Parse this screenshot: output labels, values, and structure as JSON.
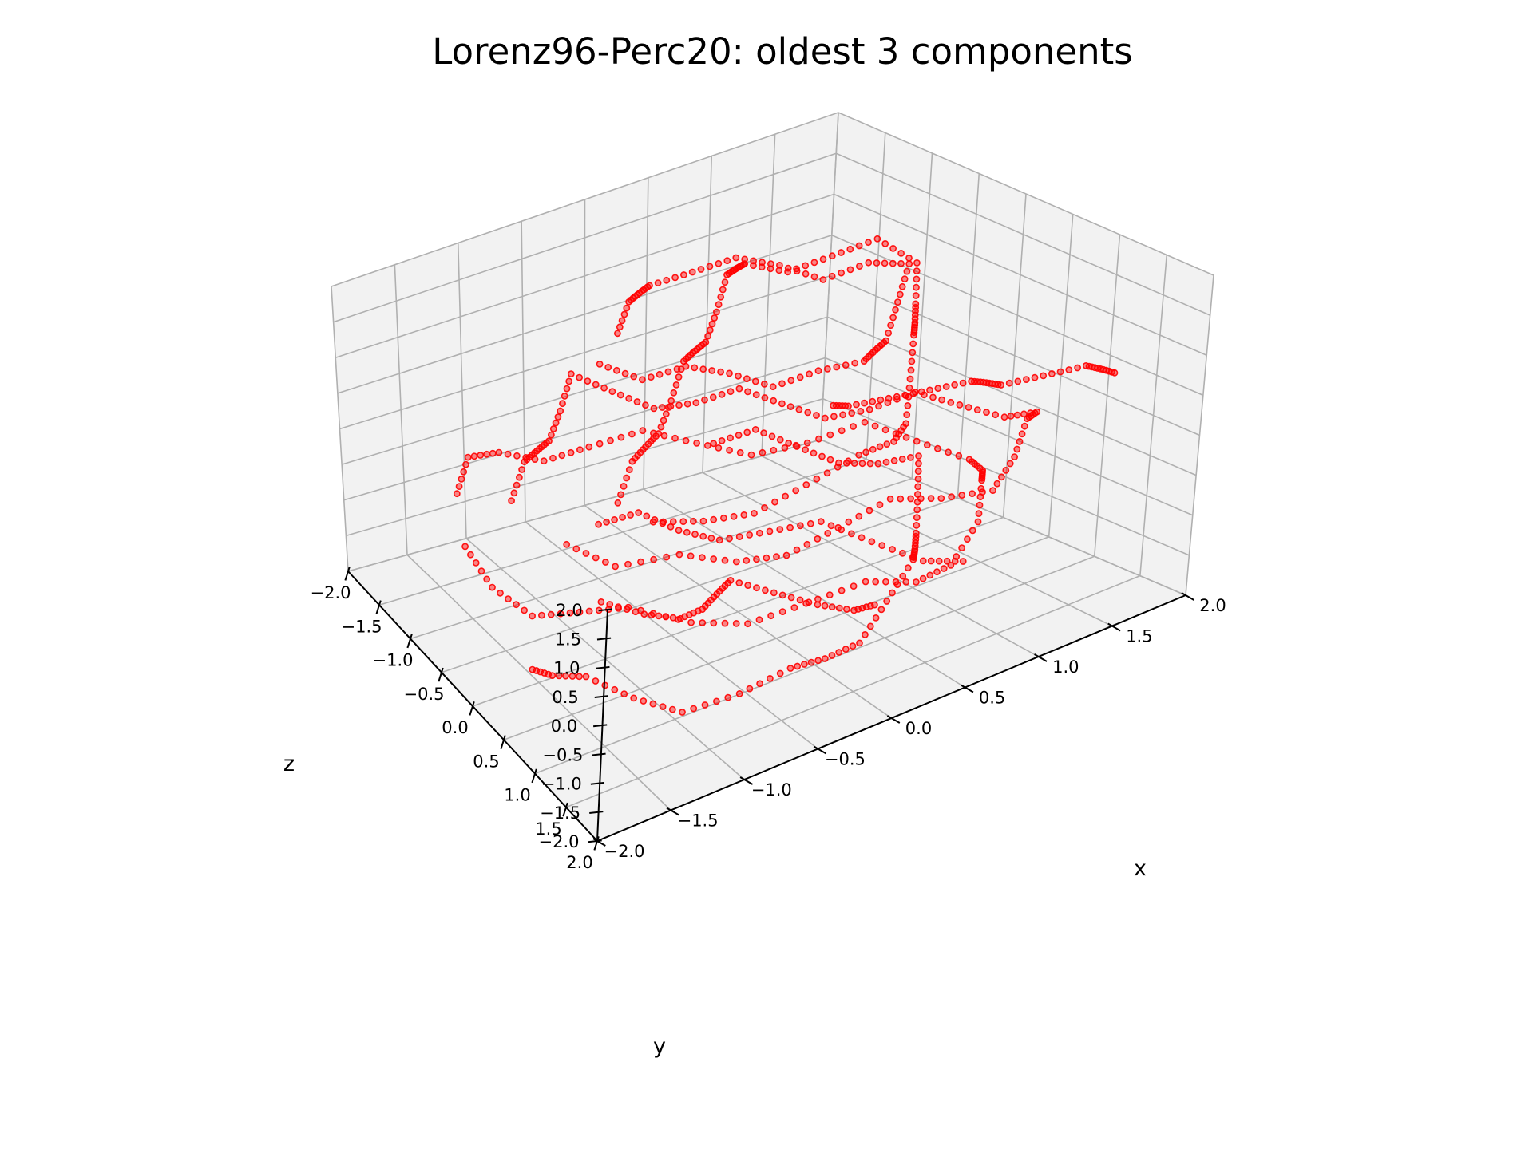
{
  "chart_data": {
    "type": "scatter",
    "projection": "3d",
    "title": "Lorenz96-Perc20: oldest 3 components",
    "xlabel": "x",
    "ylabel": "y",
    "zlabel": "z",
    "xlim": [
      -2.0,
      2.0
    ],
    "ylim": [
      -2.0,
      2.0
    ],
    "zlim": [
      -2.0,
      2.0
    ],
    "xticks": [
      "−2.0",
      "−1.5",
      "−1.0",
      "−0.5",
      "0.0",
      "0.5",
      "1.0",
      "1.5",
      "2.0"
    ],
    "yticks": [
      "−2.0",
      "−1.5",
      "−1.0",
      "−0.5",
      "0.0",
      "0.5",
      "1.0",
      "1.5",
      "2.0"
    ],
    "zticks": [
      "−2.0",
      "−1.5",
      "−1.0",
      "−0.5",
      "0.0",
      "0.5",
      "1.0",
      "1.5",
      "2.0"
    ],
    "grid": true,
    "marker_color": "#ff0000",
    "pane_color": "#f2f2f2",
    "series": [
      {
        "points": [
          [
            -1.4,
            -0.9,
            1.6
          ],
          [
            -1.2,
            -0.7,
            1.8
          ],
          [
            -1.0,
            -0.5,
            1.6
          ],
          [
            -0.8,
            -0.3,
            1.4
          ],
          [
            -0.6,
            -0.1,
            1.5
          ],
          [
            -0.4,
            0.1,
            1.7
          ],
          [
            -0.2,
            0.3,
            1.5
          ],
          [
            0.0,
            0.5,
            1.3
          ],
          [
            0.2,
            0.7,
            1.4
          ],
          [
            0.4,
            0.9,
            1.6
          ],
          [
            0.6,
            1.1,
            1.4
          ],
          [
            0.8,
            1.3,
            1.2
          ],
          [
            1.0,
            1.1,
            1.1
          ],
          [
            1.2,
            0.9,
            1.3
          ],
          [
            1.4,
            0.7,
            1.5
          ],
          [
            1.5,
            0.4,
            1.3
          ],
          [
            1.3,
            0.1,
            1.1
          ],
          [
            1.1,
            -0.2,
            1.2
          ],
          [
            0.9,
            -0.5,
            1.4
          ],
          [
            0.7,
            -0.8,
            1.2
          ],
          [
            0.5,
            -1.1,
            1.0
          ],
          [
            0.3,
            -1.3,
            1.1
          ],
          [
            0.0,
            -1.4,
            1.3
          ],
          [
            -0.3,
            -1.3,
            1.1
          ],
          [
            -0.6,
            -1.2,
            0.9
          ],
          [
            -0.9,
            -1.1,
            1.0
          ],
          [
            -1.2,
            -1.0,
            1.2
          ]
        ]
      },
      {
        "points": [
          [
            -1.6,
            0.2,
            0.6
          ],
          [
            -1.4,
            0.4,
            0.8
          ],
          [
            -1.2,
            0.6,
            0.6
          ],
          [
            -1.0,
            0.8,
            0.4
          ],
          [
            -0.8,
            1.0,
            0.5
          ],
          [
            -0.6,
            1.2,
            0.7
          ],
          [
            -0.4,
            1.0,
            0.5
          ],
          [
            -0.2,
            0.8,
            0.3
          ],
          [
            0.0,
            0.6,
            0.4
          ],
          [
            0.2,
            0.4,
            0.6
          ],
          [
            0.4,
            0.2,
            0.4
          ],
          [
            0.6,
            0.0,
            0.2
          ],
          [
            0.8,
            -0.2,
            0.3
          ],
          [
            1.0,
            -0.4,
            0.5
          ],
          [
            1.2,
            -0.6,
            0.3
          ],
          [
            1.4,
            -0.8,
            0.1
          ],
          [
            1.5,
            -1.0,
            0.2
          ],
          [
            1.3,
            -1.2,
            0.4
          ],
          [
            1.1,
            -1.4,
            0.2
          ],
          [
            0.9,
            -1.5,
            0.0
          ],
          [
            0.6,
            -1.4,
            0.1
          ],
          [
            0.3,
            -1.3,
            0.3
          ],
          [
            0.0,
            -1.2,
            0.1
          ],
          [
            -0.3,
            -1.1,
            -0.1
          ],
          [
            -0.6,
            -1.0,
            0.0
          ],
          [
            -0.9,
            -0.8,
            0.2
          ],
          [
            -1.2,
            -0.5,
            0.0
          ],
          [
            -1.4,
            -0.2,
            0.2
          ]
        ]
      },
      {
        "points": [
          [
            -1.5,
            1.2,
            -0.4
          ],
          [
            -1.3,
            1.4,
            -0.2
          ],
          [
            -1.0,
            1.5,
            -0.4
          ],
          [
            -0.7,
            1.4,
            -0.6
          ],
          [
            -0.4,
            1.3,
            -0.5
          ],
          [
            -0.1,
            1.1,
            -0.3
          ],
          [
            0.2,
            0.9,
            -0.5
          ],
          [
            0.5,
            0.7,
            -0.7
          ],
          [
            0.8,
            0.5,
            -0.6
          ],
          [
            1.1,
            0.3,
            -0.4
          ],
          [
            1.3,
            0.0,
            -0.6
          ],
          [
            1.5,
            -0.3,
            -0.8
          ],
          [
            1.4,
            -0.6,
            -0.7
          ],
          [
            1.2,
            -0.9,
            -0.5
          ],
          [
            1.0,
            -1.2,
            -0.7
          ],
          [
            0.7,
            -1.4,
            -0.9
          ],
          [
            0.4,
            -1.5,
            -0.8
          ],
          [
            0.1,
            -1.4,
            -0.6
          ],
          [
            -0.2,
            -1.2,
            -0.8
          ],
          [
            -0.5,
            -1.0,
            -1.0
          ],
          [
            -0.8,
            -0.8,
            -0.9
          ],
          [
            -1.1,
            -0.5,
            -0.7
          ],
          [
            -1.3,
            -0.2,
            -0.9
          ],
          [
            -1.5,
            0.1,
            -1.1
          ],
          [
            -1.6,
            0.5,
            -1.0
          ],
          [
            -1.6,
            0.9,
            -0.8
          ]
        ]
      },
      {
        "points": [
          [
            0.8,
            1.6,
            -1.3
          ],
          [
            1.0,
            1.4,
            -1.1
          ],
          [
            1.2,
            1.2,
            -1.3
          ],
          [
            1.4,
            1.0,
            -1.5
          ],
          [
            1.5,
            0.7,
            -1.4
          ],
          [
            1.6,
            0.4,
            -1.2
          ],
          [
            1.4,
            0.1,
            -1.4
          ],
          [
            1.2,
            -0.2,
            -1.6
          ],
          [
            1.0,
            -0.5,
            -1.5
          ],
          [
            0.8,
            -0.8,
            -1.3
          ],
          [
            0.5,
            -1.0,
            -1.5
          ],
          [
            0.2,
            -1.2,
            -1.7
          ],
          [
            -0.1,
            -1.3,
            -1.6
          ],
          [
            -0.4,
            -1.4,
            -1.4
          ],
          [
            -0.7,
            -1.3,
            -1.6
          ],
          [
            -1.0,
            -1.1,
            -1.8
          ],
          [
            -1.2,
            -0.8,
            -1.7
          ],
          [
            -1.4,
            -0.5,
            -1.5
          ],
          [
            -1.5,
            -0.2,
            -1.7
          ],
          [
            -1.5,
            0.1,
            -1.9
          ]
        ]
      },
      {
        "points": [
          [
            -0.2,
            1.5,
            -1.8
          ],
          [
            0.0,
            1.3,
            -1.6
          ],
          [
            0.2,
            1.1,
            -1.8
          ],
          [
            0.4,
            0.9,
            -1.9
          ],
          [
            0.6,
            0.6,
            -1.7
          ],
          [
            0.8,
            0.3,
            -1.5
          ],
          [
            1.0,
            0.0,
            -1.7
          ],
          [
            1.2,
            -0.3,
            -1.9
          ],
          [
            1.3,
            -0.6,
            -1.8
          ]
        ]
      },
      {
        "points": [
          [
            -0.9,
            0.3,
            1.9
          ],
          [
            -0.7,
            0.1,
            1.7
          ],
          [
            -0.5,
            -0.1,
            1.9
          ],
          [
            -0.3,
            -0.3,
            1.8
          ],
          [
            -0.1,
            -0.5,
            1.6
          ],
          [
            0.1,
            -0.7,
            1.8
          ],
          [
            0.3,
            -0.9,
            1.9
          ],
          [
            0.5,
            -0.7,
            1.7
          ],
          [
            0.7,
            -0.5,
            1.5
          ],
          [
            0.9,
            -0.3,
            1.7
          ],
          [
            1.1,
            -0.1,
            1.9
          ],
          [
            1.0,
            0.2,
            1.8
          ],
          [
            0.8,
            0.4,
            1.6
          ],
          [
            0.6,
            0.6,
            1.8
          ],
          [
            0.4,
            0.8,
            1.9
          ],
          [
            0.2,
            1.0,
            1.7
          ],
          [
            0.0,
            1.2,
            1.5
          ],
          [
            -0.2,
            1.0,
            1.7
          ],
          [
            -0.4,
            0.8,
            1.9
          ],
          [
            -0.6,
            0.6,
            1.8
          ]
        ]
      },
      {
        "points": [
          [
            1.7,
            -1.5,
            0.8
          ],
          [
            1.8,
            -1.2,
            0.6
          ],
          [
            1.9,
            -0.9,
            0.4
          ],
          [
            1.8,
            -0.6,
            0.2
          ],
          [
            1.7,
            -0.3,
            0.0
          ],
          [
            1.8,
            0.0,
            -0.2
          ],
          [
            1.9,
            0.3,
            -0.4
          ],
          [
            1.8,
            0.6,
            -0.6
          ],
          [
            1.7,
            0.9,
            -0.8
          ],
          [
            1.6,
            1.2,
            -1.0
          ],
          [
            1.7,
            1.5,
            -1.2
          ]
        ]
      },
      {
        "points": [
          [
            -1.8,
            -1.5,
            1.2
          ],
          [
            -1.6,
            -1.7,
            1.0
          ],
          [
            -1.4,
            -1.8,
            0.8
          ],
          [
            -1.2,
            -1.7,
            0.6
          ],
          [
            -1.0,
            -1.5,
            0.4
          ],
          [
            -0.8,
            -1.3,
            0.2
          ],
          [
            -0.6,
            -1.5,
            0.0
          ],
          [
            -0.4,
            -1.7,
            -0.2
          ],
          [
            -0.2,
            -1.8,
            -0.4
          ],
          [
            0.0,
            -1.7,
            -0.6
          ]
        ]
      }
    ]
  }
}
